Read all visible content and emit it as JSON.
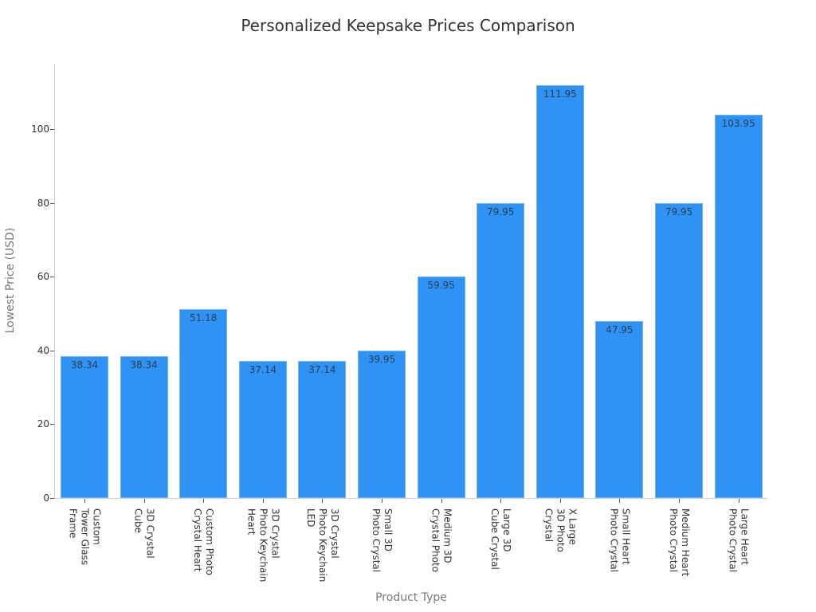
{
  "title": "Personalized Keepsake Prices Comparison",
  "colors": {
    "bar": "#2e93f5",
    "bar_edge": "#6fb3f0",
    "axis": "#cccccc"
  },
  "chart_data": {
    "type": "bar",
    "title": "Personalized Keepsake Prices Comparison",
    "xlabel": "Product Type",
    "ylabel": "Lowest Price (USD)",
    "ylim": [
      0,
      118
    ],
    "yticks": [
      0,
      20,
      40,
      60,
      80,
      100
    ],
    "grid": false,
    "legend": null,
    "categories": [
      "Custom Tower Glass Frame",
      "3D Crystal Cube",
      "Custom Photo Crystal Heart",
      "3D Crystal Photo Keychain Heart",
      "3D Crystal Photo Keychain LED",
      "Small 3D Photo Crystal",
      "Medium 3D Crystal Photo",
      "Large 3D Cube Crystal",
      "X Large 3D Photo Crystal",
      "Small Heart Photo Crystal",
      "Medium Heart Photo Crystal",
      "Large Heart Photo Crystal"
    ],
    "tick_labels_wrapped": [
      "Custom\nTower Glass\nFrame",
      "3D Crystal\nCube",
      "Custom Photo\nCrystal Heart",
      "3D Crystal\nPhoto Keychain\nHeart",
      "3D Crystal\nPhoto Keychain\nLED",
      "Small 3D\nPhoto Crystal",
      "Medium 3D\nCrystal Photo",
      "Large 3D\nCube Crystal",
      "X Large\n3D Photo\nCrystal",
      "Small Heart\nPhoto Crystal",
      "Medium Heart\nPhoto Crystal",
      "Large Heart\nPhoto Crystal"
    ],
    "values": [
      38.34,
      38.34,
      51.18,
      37.14,
      37.14,
      39.95,
      59.95,
      79.95,
      111.95,
      47.95,
      79.95,
      103.95
    ],
    "value_labels": [
      "38.34",
      "38.34",
      "51.18",
      "37.14",
      "37.14",
      "39.95",
      "59.95",
      "79.95",
      "111.95",
      "47.95",
      "79.95",
      "103.95"
    ]
  }
}
